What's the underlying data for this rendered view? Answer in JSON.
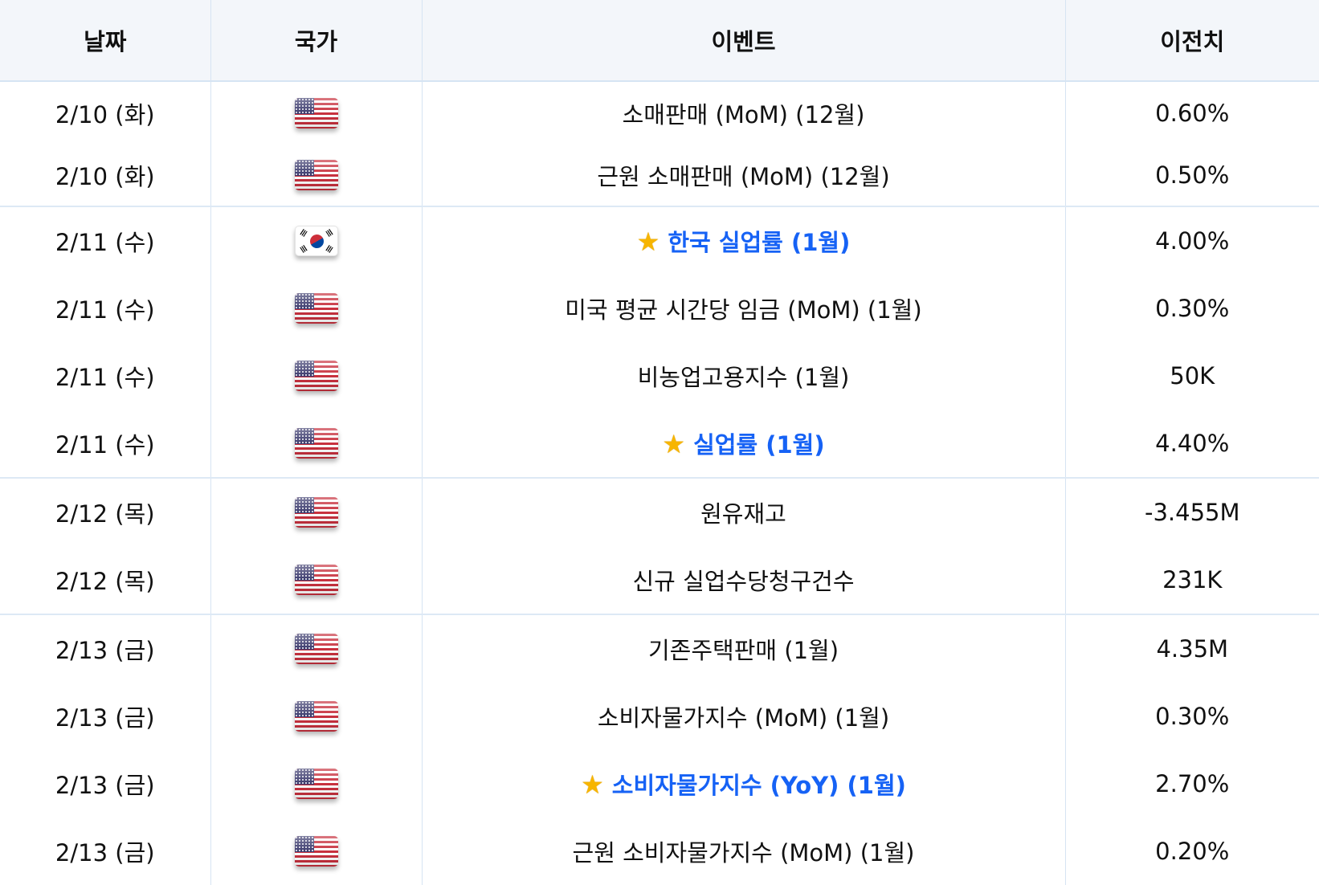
{
  "headers": {
    "date": "날짜",
    "country": "국가",
    "event": "이벤트",
    "previous": "이전치"
  },
  "colors": {
    "highlight": "#1662f5",
    "header_bg": "#f3f6fa",
    "border": "#d6e4f3",
    "star": "#f7b500"
  },
  "rows": [
    {
      "date": "2/10 (화)",
      "country": "us",
      "event": "소매판매 (MoM) (12월)",
      "previous": "0.60%",
      "important": false
    },
    {
      "date": "2/10 (화)",
      "country": "us",
      "event": "근원 소매판매 (MoM) (12월)",
      "previous": "0.50%",
      "important": false
    },
    {
      "date": "2/11 (수)",
      "country": "kr",
      "event": "한국 실업률 (1월)",
      "previous": "4.00%",
      "important": true
    },
    {
      "date": "2/11 (수)",
      "country": "us",
      "event": "미국 평균 시간당 임금 (MoM) (1월)",
      "previous": "0.30%",
      "important": false
    },
    {
      "date": "2/11 (수)",
      "country": "us",
      "event": "비농업고용지수 (1월)",
      "previous": "50K",
      "important": false
    },
    {
      "date": "2/11 (수)",
      "country": "us",
      "event": "실업률 (1월)",
      "previous": "4.40%",
      "important": true
    },
    {
      "date": "2/12 (목)",
      "country": "us",
      "event": "원유재고",
      "previous": "-3.455M",
      "important": false
    },
    {
      "date": "2/12 (목)",
      "country": "us",
      "event": "신규 실업수당청구건수",
      "previous": "231K",
      "important": false
    },
    {
      "date": "2/13 (금)",
      "country": "us",
      "event": "기존주택판매 (1월)",
      "previous": "4.35M",
      "important": false
    },
    {
      "date": "2/13 (금)",
      "country": "us",
      "event": "소비자물가지수 (MoM) (1월)",
      "previous": "0.30%",
      "important": false
    },
    {
      "date": "2/13 (금)",
      "country": "us",
      "event": "소비자물가지수 (YoY) (1월)",
      "previous": "2.70%",
      "important": true
    },
    {
      "date": "2/13 (금)",
      "country": "us",
      "event": "근원 소비자물가지수 (MoM) (1월)",
      "previous": "0.20%",
      "important": false
    }
  ]
}
